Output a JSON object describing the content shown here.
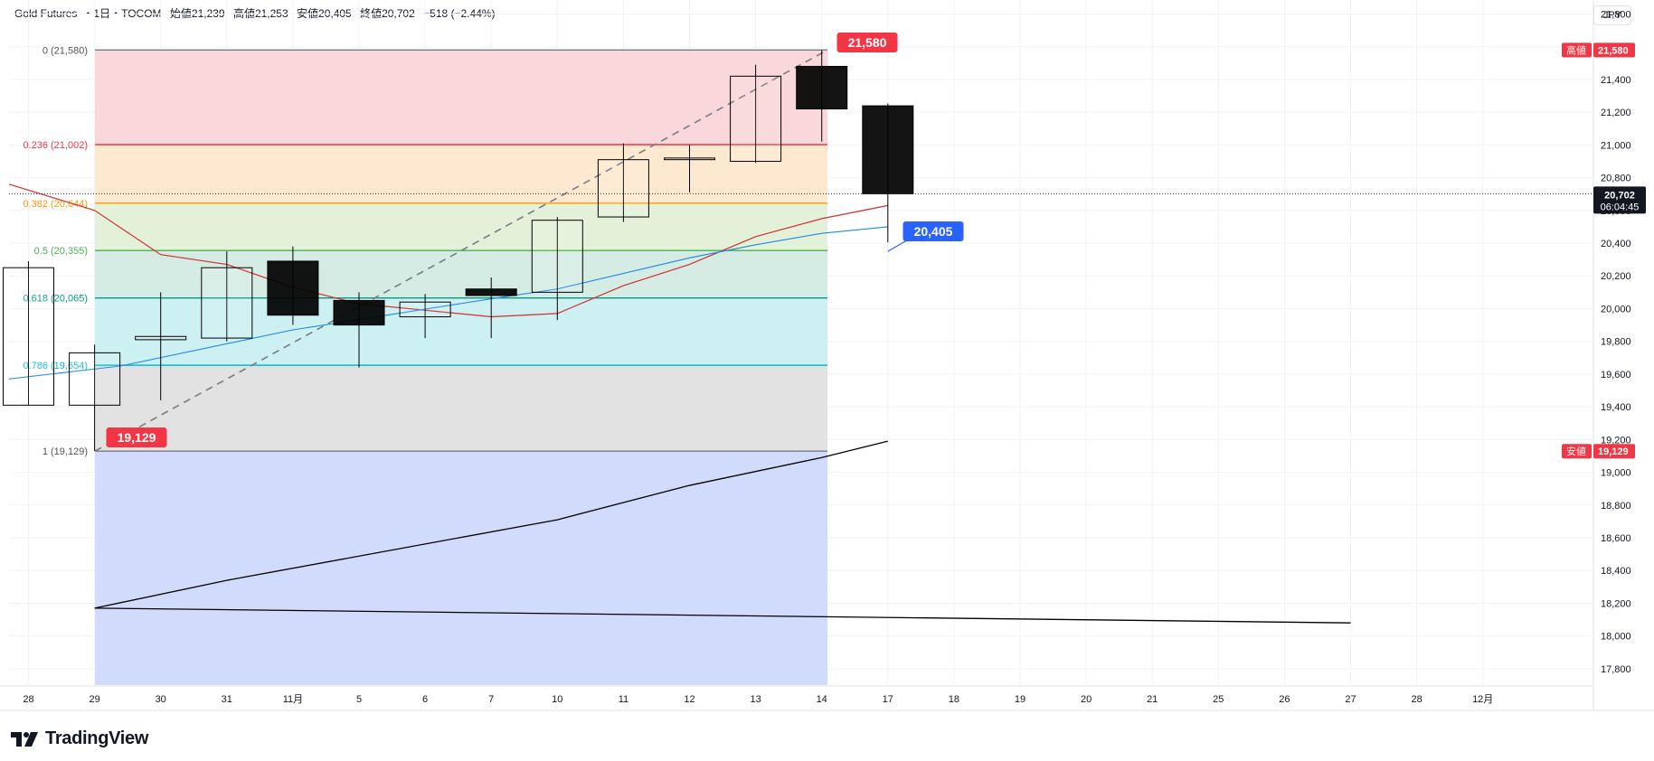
{
  "header": {
    "symbol": "Gold Futures",
    "separator": "・",
    "interval": "1日",
    "exchange": "TOCOM",
    "open": "始値21,239",
    "high": "高値21,253",
    "low": "安値20,405",
    "close": "終値20,702",
    "change": "−518 (−2.44%)"
  },
  "currency_button": "JPY",
  "brand": {
    "name": "TradingView"
  },
  "colors": {
    "up_body": "#ffffff",
    "down_body": "#000000",
    "candle_border": "#000000",
    "label_red": "#f23645",
    "label_blue": "#2962ff",
    "ma_red": "#d32f2f",
    "ma_blue": "#1e88e5",
    "trend_black": "#000000"
  },
  "chart_data": {
    "type": "candlestick",
    "title": "Gold Futures・1日・TOCOM",
    "x_ticks": [
      "28",
      "29",
      "30",
      "31",
      "11月",
      "5",
      "6",
      "7",
      "10",
      "11",
      "12",
      "13",
      "14",
      "17",
      "18",
      "19",
      "20",
      "21",
      "25",
      "26",
      "27",
      "28",
      "12月"
    ],
    "y_ticks": [
      "21,800",
      "21,600",
      "21,400",
      "21,200",
      "21,000",
      "20,800",
      "20,600",
      "20,400",
      "20,200",
      "20,000",
      "19,800",
      "19,600",
      "19,400",
      "19,200",
      "19,000",
      "18,800",
      "18,600",
      "18,400",
      "18,200",
      "18,000",
      "17,800"
    ],
    "ylim": [
      17700,
      21880
    ],
    "candles": [
      {
        "date": "28",
        "open": 19410,
        "high": 20290,
        "low": 19410,
        "close": 20250
      },
      {
        "date": "29",
        "open": 19410,
        "high": 19780,
        "low": 19130,
        "close": 19730
      },
      {
        "date": "30",
        "open": 19810,
        "high": 20100,
        "low": 19440,
        "close": 19830
      },
      {
        "date": "31",
        "open": 19820,
        "high": 20350,
        "low": 19800,
        "close": 20250
      },
      {
        "date": "11月",
        "open": 20290,
        "high": 20380,
        "low": 19900,
        "close": 19960
      },
      {
        "date": "5",
        "open": 20050,
        "high": 20100,
        "low": 19640,
        "close": 19900
      },
      {
        "date": "6",
        "open": 19950,
        "high": 20090,
        "low": 19820,
        "close": 20040
      },
      {
        "date": "7",
        "open": 20120,
        "high": 20190,
        "low": 19820,
        "close": 20080
      },
      {
        "date": "10",
        "open": 20100,
        "high": 20560,
        "low": 19930,
        "close": 20540
      },
      {
        "date": "11",
        "open": 20560,
        "high": 21010,
        "low": 20530,
        "close": 20910
      },
      {
        "date": "12",
        "open": 20910,
        "high": 21000,
        "low": 20710,
        "close": 20920
      },
      {
        "date": "13",
        "open": 20900,
        "high": 21490,
        "low": 20890,
        "close": 21420
      },
      {
        "date": "14",
        "open": 21480,
        "high": 21580,
        "low": 21020,
        "close": 21220
      },
      {
        "date": "17",
        "open": 21239,
        "high": 21253,
        "low": 20405,
        "close": 20702
      }
    ],
    "fibonacci": {
      "start": {
        "date": "29",
        "price": 19129
      },
      "end": {
        "date": "14",
        "price": 21580
      },
      "levels": [
        {
          "ratio": "0",
          "price": 21580,
          "label": "0 (21,580)",
          "line": "#787b86",
          "fill": "#f9d7da"
        },
        {
          "ratio": "0.236",
          "price": 21002,
          "label": "0.236 (21,002)",
          "line": "#f23645",
          "fill": "#fde9d0"
        },
        {
          "ratio": "0.382",
          "price": 20644,
          "label": "0.382 (20,644)",
          "line": "#ff9800",
          "fill": "#e3f1d8"
        },
        {
          "ratio": "0.5",
          "price": 20355,
          "label": "0.5 (20,355)",
          "line": "#4caf50",
          "fill": "#d4ece4"
        },
        {
          "ratio": "0.618",
          "price": 20065,
          "label": "0.618 (20,065)",
          "line": "#089981",
          "fill": "#cdf0f2"
        },
        {
          "ratio": "0.786",
          "price": 19654,
          "label": "0.786 (19,654)",
          "line": "#00bcd4",
          "fill": "#e2e2e2"
        },
        {
          "ratio": "1",
          "price": 19129,
          "label": "1 (19,129)",
          "line": "#787b86",
          "fill": "#d1dbfb"
        }
      ],
      "extension_fill_to": 17700
    },
    "moving_average_red": [
      {
        "date": "27",
        "value": 20760
      },
      {
        "date": "29",
        "value": 20600
      },
      {
        "date": "30",
        "value": 20330
      },
      {
        "date": "31",
        "value": 20270
      },
      {
        "date": "11月",
        "value": 20130
      },
      {
        "date": "5",
        "value": 20030
      },
      {
        "date": "6",
        "value": 19990
      },
      {
        "date": "7",
        "value": 19950
      },
      {
        "date": "10",
        "value": 19970
      },
      {
        "date": "11",
        "value": 20140
      },
      {
        "date": "12",
        "value": 20270
      },
      {
        "date": "13",
        "value": 20440
      },
      {
        "date": "14",
        "value": 20550
      },
      {
        "date": "17",
        "value": 20630
      }
    ],
    "moving_average_blue": [
      {
        "date": "27.7",
        "value": 19570
      },
      {
        "date": "29.4",
        "value": 19650
      },
      {
        "date": "11月",
        "value": 19870
      },
      {
        "date": "7",
        "value": 20060
      },
      {
        "date": "10",
        "value": 20120
      },
      {
        "date": "12",
        "value": 20310
      },
      {
        "date": "13",
        "value": 20390
      },
      {
        "date": "14",
        "value": 20460
      },
      {
        "date": "17",
        "value": 20500
      }
    ],
    "trend_line": [
      {
        "date": "27",
        "value": 18080
      },
      {
        "date": "29",
        "value": 18170
      },
      {
        "date": "31",
        "value": 18340
      },
      {
        "date": "10",
        "value": 18710
      },
      {
        "date": "12",
        "value": 18920
      },
      {
        "date": "14",
        "value": 19090
      },
      {
        "date": "17",
        "value": 19190
      }
    ],
    "price_labels": {
      "top": "21,580",
      "bottom": "19,129",
      "low_callout": "20,405",
      "high_axis_tag": "高値",
      "high_axis_value": "21,580",
      "low_axis_tag": "安値",
      "low_axis_value": "19,129",
      "last_price": "20,702",
      "countdown": "06:04:45"
    },
    "last_price_value": 20702,
    "grid": true
  }
}
